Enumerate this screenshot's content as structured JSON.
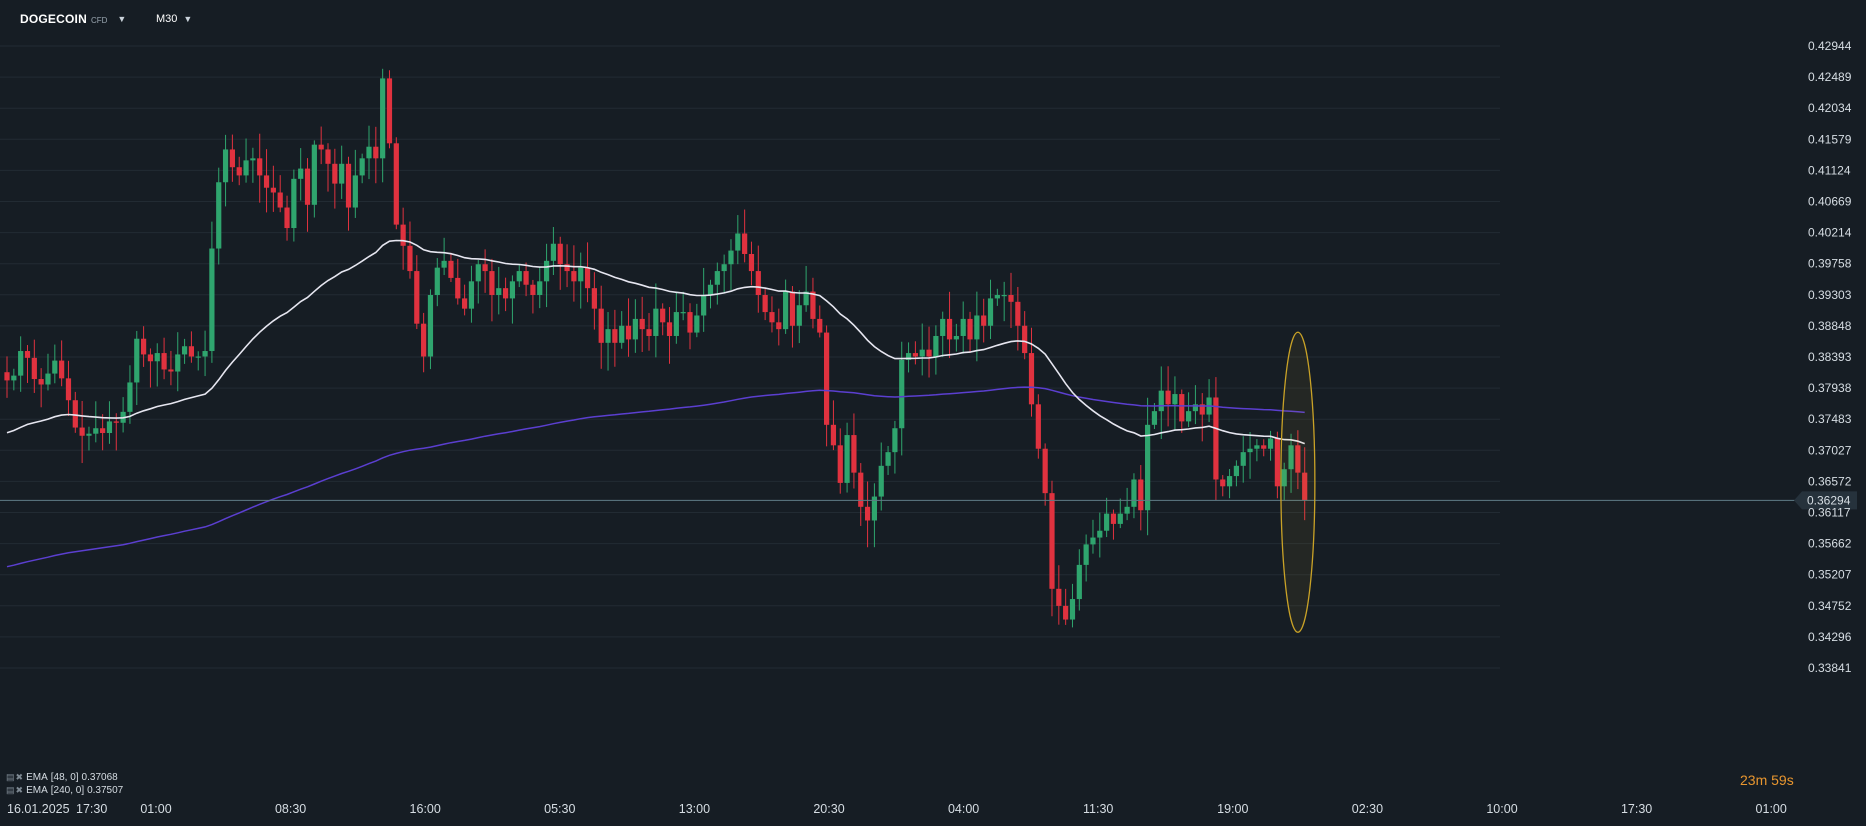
{
  "toolbar": {
    "symbol": "DOGECOIN",
    "symbol_type": "CFD",
    "symbol_caret_icon": "caret-down-icon",
    "timeframe": "M30",
    "timeframe_caret_icon": "caret-down-icon"
  },
  "price_axis": {
    "labels": [
      "0.42944",
      "0.42489",
      "0.42034",
      "0.41579",
      "0.41124",
      "0.40669",
      "0.40214",
      "0.39758",
      "0.39303",
      "0.38848",
      "0.38393",
      "0.37938",
      "0.37483",
      "0.37027",
      "0.36572",
      "0.36117",
      "0.35662",
      "0.35207",
      "0.34752",
      "0.34296",
      "0.33841"
    ],
    "current_price": "0.36294"
  },
  "time_axis": {
    "date_label": "16.01.2025",
    "labels": [
      "17:30",
      "01:00",
      "08:30",
      "16:00",
      "05:30",
      "13:00",
      "20:30",
      "04:00",
      "11:30",
      "19:00",
      "02:30",
      "10:00",
      "17:30",
      "01:00"
    ]
  },
  "legend": [
    {
      "name": "EMA",
      "params": "[48,  0]",
      "value": "0.37068",
      "color": "#e6e6f0"
    },
    {
      "name": "EMA",
      "params": "[240,  0]",
      "value": "0.37507",
      "color": "#5b3fd0"
    }
  ],
  "countdown": {
    "minutes": "23",
    "minutes_unit": "m",
    "seconds": "59",
    "seconds_unit": "s"
  },
  "colors": {
    "background": "#161d24",
    "grid": "#222b33",
    "bull": "#2fa56e",
    "bear": "#e0323f",
    "ema_fast": "#e6e6f0",
    "ema_slow": "#5b3fd0",
    "highlight": "#c9a227",
    "price_line": "#5f7c86"
  },
  "chart_data": {
    "type": "candlestick",
    "symbol": "DOGECOIN",
    "timeframe": "M30",
    "ylim": [
      0.33841,
      0.42944
    ],
    "x_ticks": [
      "17:30",
      "01:00",
      "08:30",
      "16:00",
      "05:30",
      "13:00",
      "20:30",
      "04:00",
      "11:30",
      "19:00",
      "02:30",
      "10:00",
      "17:30",
      "01:00"
    ],
    "close": [
      0.3805,
      0.3812,
      0.3848,
      0.3838,
      0.3807,
      0.3799,
      0.3815,
      0.3834,
      0.3808,
      0.3776,
      0.3736,
      0.3724,
      0.3727,
      0.3735,
      0.3728,
      0.3745,
      0.3743,
      0.3759,
      0.3802,
      0.3866,
      0.3843,
      0.3833,
      0.3845,
      0.3821,
      0.3818,
      0.3843,
      0.3855,
      0.384,
      0.384,
      0.3848,
      0.3998,
      0.4095,
      0.4143,
      0.4117,
      0.4105,
      0.4127,
      0.413,
      0.4105,
      0.4087,
      0.408,
      0.4058,
      0.4028,
      0.41,
      0.4115,
      0.4062,
      0.415,
      0.4143,
      0.4122,
      0.4093,
      0.4122,
      0.4058,
      0.4105,
      0.413,
      0.4147,
      0.413,
      0.4247,
      0.4152,
      0.4033,
      0.4002,
      0.3965,
      0.3888,
      0.384,
      0.393,
      0.397,
      0.398,
      0.3955,
      0.3925,
      0.391,
      0.395,
      0.3975,
      0.3965,
      0.393,
      0.394,
      0.3925,
      0.395,
      0.3965,
      0.3945,
      0.393,
      0.395,
      0.398,
      0.4005,
      0.3975,
      0.3965,
      0.395,
      0.397,
      0.394,
      0.391,
      0.386,
      0.388,
      0.386,
      0.3885,
      0.3865,
      0.3895,
      0.388,
      0.387,
      0.391,
      0.389,
      0.387,
      0.3905,
      0.3905,
      0.3875,
      0.39,
      0.393,
      0.3945,
      0.3965,
      0.3975,
      0.3995,
      0.402,
      0.399,
      0.3965,
      0.393,
      0.3905,
      0.389,
      0.388,
      0.3935,
      0.3885,
      0.3915,
      0.3935,
      0.3895,
      0.3875,
      0.374,
      0.371,
      0.3655,
      0.3725,
      0.367,
      0.362,
      0.36,
      0.3635,
      0.368,
      0.37,
      0.3735,
      0.3835,
      0.3845,
      0.384,
      0.385,
      0.384,
      0.387,
      0.3895,
      0.3865,
      0.387,
      0.3895,
      0.3865,
      0.39,
      0.3885,
      0.3925,
      0.393,
      0.393,
      0.392,
      0.3885,
      0.3845,
      0.377,
      0.3705,
      0.364,
      0.35,
      0.3475,
      0.3455,
      0.3485,
      0.3535,
      0.3565,
      0.3575,
      0.3585,
      0.361,
      0.3595,
      0.361,
      0.362,
      0.366,
      0.3615,
      0.374,
      0.376,
      0.379,
      0.377,
      0.3785,
      0.3745,
      0.376,
      0.377,
      0.3755,
      0.378,
      0.366,
      0.365,
      0.3665,
      0.368,
      0.37,
      0.3705,
      0.371,
      0.3705,
      0.372,
      0.365,
      0.3675,
      0.371,
      0.367,
      0.363
    ],
    "ema_48_last": 0.37068,
    "ema_240_last": 0.37507,
    "current_price": 0.36294
  }
}
